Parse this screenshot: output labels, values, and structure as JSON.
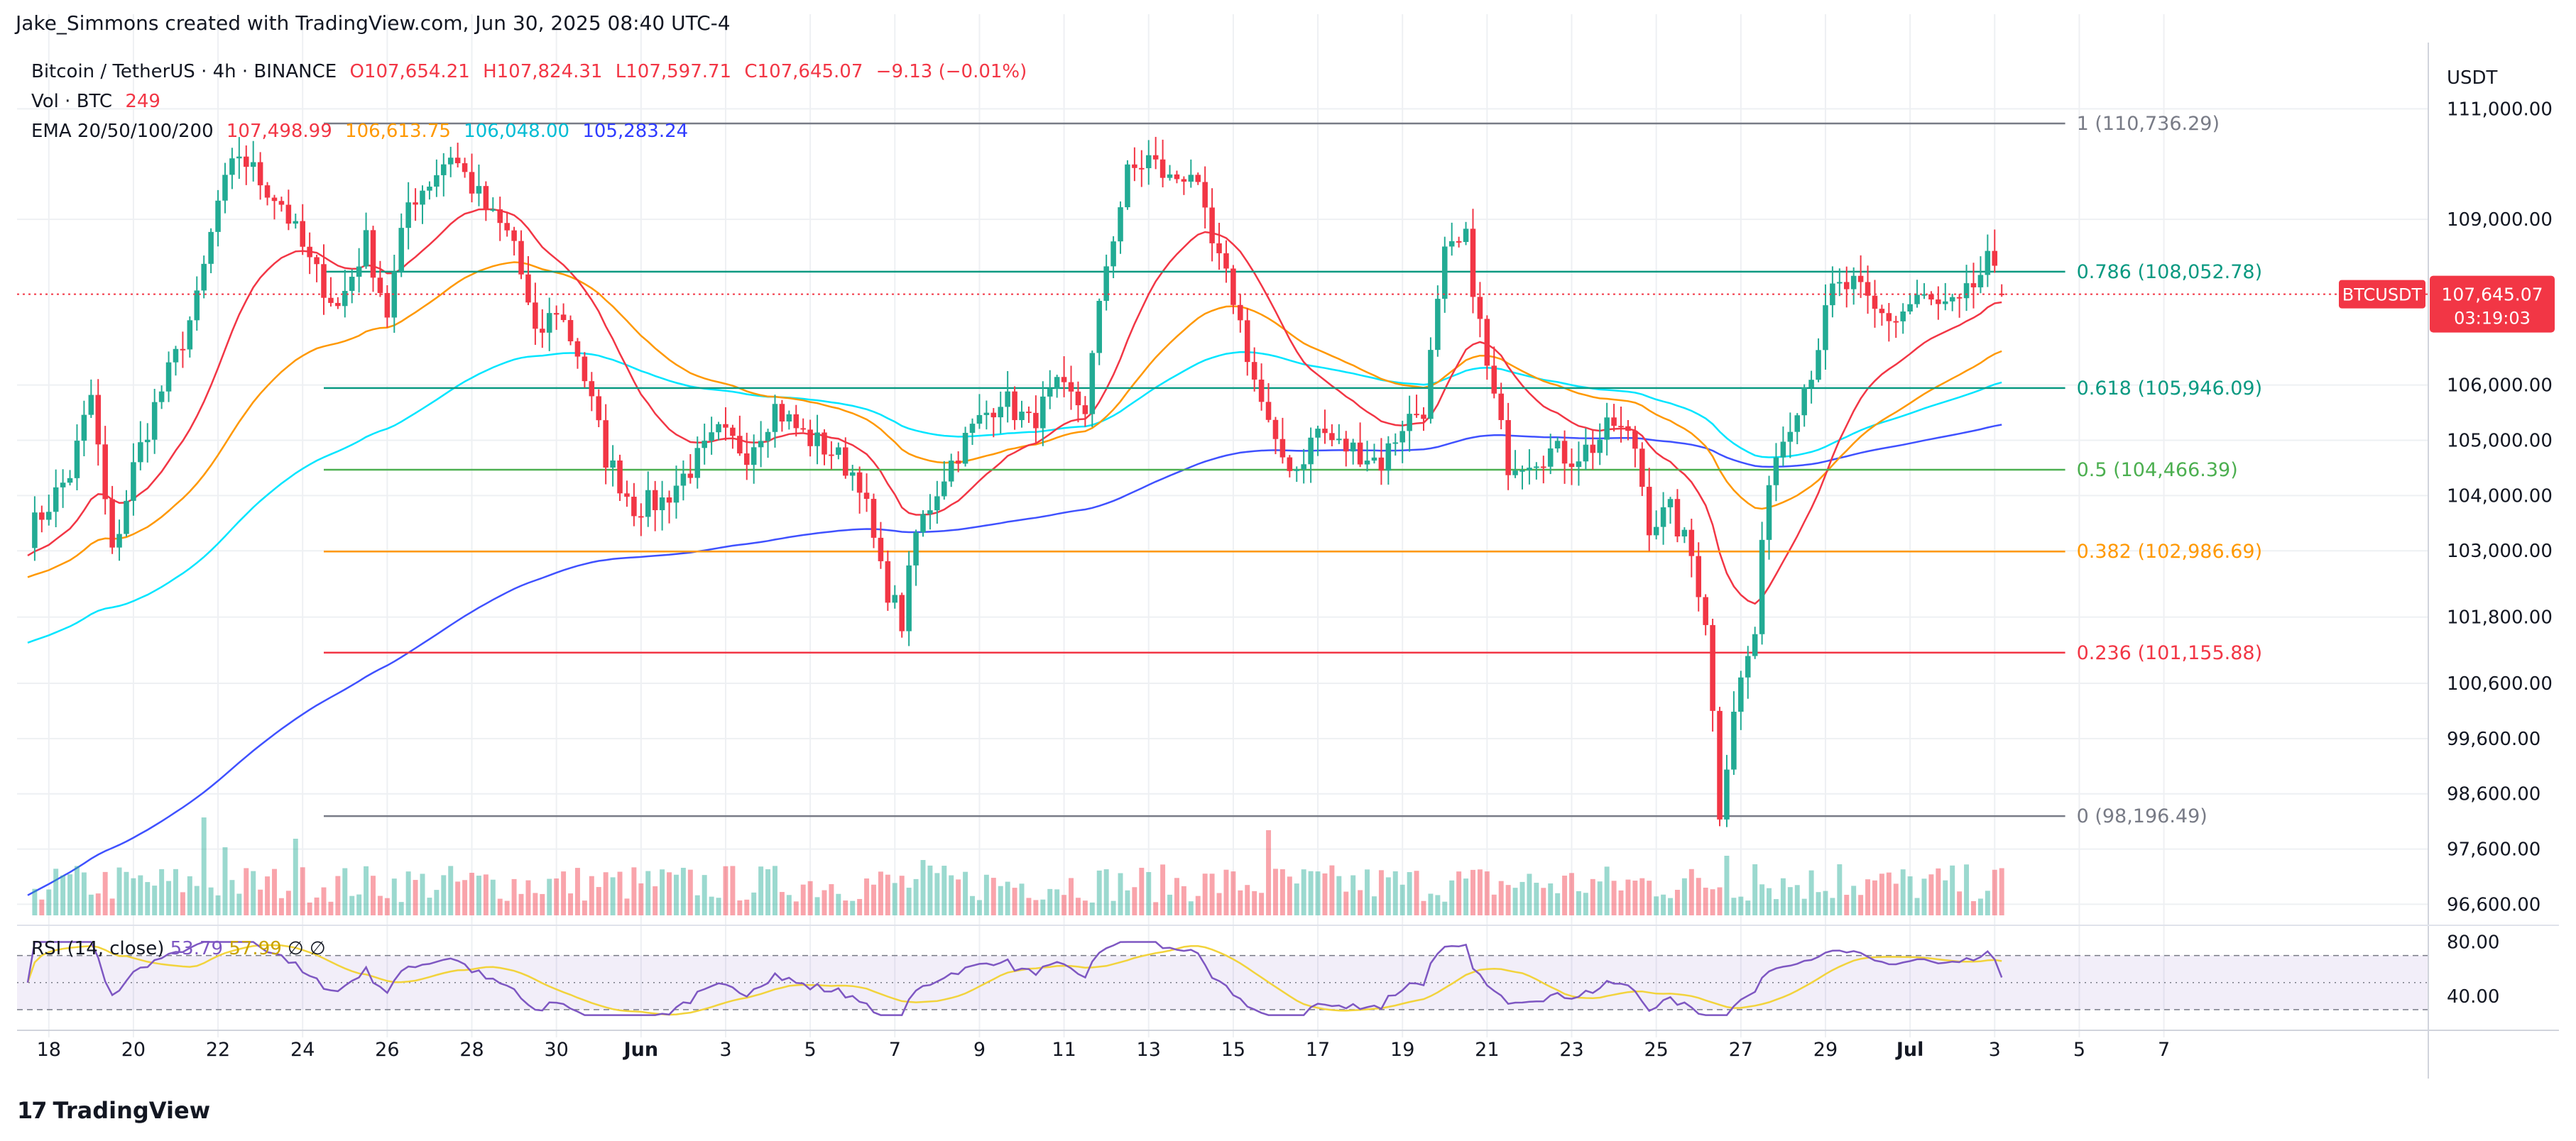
{
  "credit": "Jake_Simmons created with TradingView.com, Jun 30, 2025 08:40 UTC-4",
  "legend": {
    "symbol": "Bitcoin / TetherUS · 4h · BINANCE",
    "open": "O107,654.21",
    "high": "H107,824.31",
    "low": "L107,597.71",
    "close": "C107,645.07",
    "change": "−9.13 (−0.01%)",
    "vol_label": "Vol · BTC",
    "vol_value": "249",
    "ema_label": "EMA 20/50/100/200",
    "ema20": "107,498.99",
    "ema50": "106,613.75",
    "ema100": "106,048.00",
    "ema200": "105,283.24"
  },
  "footer": {
    "logo": "17",
    "brand": "TradingView"
  },
  "colors": {
    "up": "#22ab94",
    "down": "#f23645",
    "ema20": "#f23645",
    "ema50": "#ff9800",
    "ema100": "#00e5ff",
    "ema200": "#3f51ff",
    "rsi": "#7e57c2",
    "rsi_ma": "#f2d33c",
    "grid": "#eef0f3",
    "axis_text": "#131722"
  },
  "chart_data": {
    "type": "candlestick",
    "title": "Bitcoin / TetherUS · 4h · BINANCE",
    "currency_label": "USDT",
    "price_axis_ticks": [
      96600,
      97600,
      98600,
      99600,
      100600,
      101800,
      103000,
      104000,
      105000,
      106000,
      109000,
      111000
    ],
    "price_axis_labels": [
      "96,600.00",
      "97,600.00",
      "98,600.00",
      "99,600.00",
      "100,600.00",
      "101,800.00",
      "103,000.00",
      "104,000.00",
      "105,000.00",
      "106,000.00",
      "109,000.00",
      "111,000.00"
    ],
    "price_range": [
      96400,
      112200
    ],
    "x_labels": [
      "18",
      "20",
      "22",
      "24",
      "26",
      "28",
      "30",
      "Jun",
      "3",
      "5",
      "7",
      "9",
      "11",
      "13",
      "15",
      "17",
      "19",
      "21",
      "23",
      "25",
      "27",
      "29",
      "Jul",
      "3",
      "5",
      "7"
    ],
    "bars_per_day": 6,
    "first_day": "May 18",
    "last_price": {
      "symbol": "BTCUSDT",
      "price": "107,645.07",
      "countdown": "03:19:03",
      "value": 107645.07
    },
    "fib_levels": [
      {
        "label": "1 (110,736.29)",
        "value": 110736.29,
        "color": "#787b86"
      },
      {
        "label": "0.786 (108,052.78)",
        "value": 108052.78,
        "color": "#089981"
      },
      {
        "label": "0.618 (105,946.09)",
        "value": 105946.09,
        "color": "#089981"
      },
      {
        "label": "0.5 (104,466.39)",
        "value": 104466.39,
        "color": "#4caf50"
      },
      {
        "label": "0.382 (102,986.69)",
        "value": 102986.69,
        "color": "#ff9800"
      },
      {
        "label": "0.236 (101,155.88)",
        "value": 101155.88,
        "color": "#f23645"
      },
      {
        "label": "0 (98,196.49)",
        "value": 98196.49,
        "color": "#787b86"
      }
    ],
    "close_path_keypoints": [
      [
        0,
        103300
      ],
      [
        6,
        104400
      ],
      [
        9,
        105800
      ],
      [
        12,
        102900
      ],
      [
        15,
        104500
      ],
      [
        18,
        105600
      ],
      [
        21,
        106500
      ],
      [
        24,
        107500
      ],
      [
        27,
        109300
      ],
      [
        30,
        110200
      ],
      [
        33,
        109700
      ],
      [
        36,
        109300
      ],
      [
        40,
        108200
      ],
      [
        44,
        107400
      ],
      [
        48,
        108600
      ],
      [
        51,
        107300
      ],
      [
        54,
        109300
      ],
      [
        57,
        109700
      ],
      [
        60,
        110200
      ],
      [
        63,
        109600
      ],
      [
        66,
        109000
      ],
      [
        69,
        108600
      ],
      [
        72,
        106800
      ],
      [
        75,
        107400
      ],
      [
        78,
        106600
      ],
      [
        82,
        104700
      ],
      [
        86,
        103800
      ],
      [
        90,
        103900
      ],
      [
        94,
        104500
      ],
      [
        98,
        105100
      ],
      [
        102,
        104800
      ],
      [
        106,
        105600
      ],
      [
        110,
        105100
      ],
      [
        114,
        104800
      ],
      [
        118,
        104300
      ],
      [
        121,
        102600
      ],
      [
        124,
        101700
      ],
      [
        126,
        103300
      ],
      [
        130,
        104400
      ],
      [
        134,
        105200
      ],
      [
        138,
        105800
      ],
      [
        142,
        105300
      ],
      [
        146,
        105900
      ],
      [
        150,
        105600
      ],
      [
        153,
        108200
      ],
      [
        156,
        109800
      ],
      [
        159,
        110100
      ],
      [
        162,
        109700
      ],
      [
        165,
        109900
      ],
      [
        168,
        108500
      ],
      [
        171,
        107600
      ],
      [
        174,
        106100
      ],
      [
        177,
        104800
      ],
      [
        180,
        104500
      ],
      [
        183,
        105200
      ],
      [
        186,
        104900
      ],
      [
        189,
        104800
      ],
      [
        192,
        104600
      ],
      [
        195,
        105300
      ],
      [
        198,
        105600
      ],
      [
        201,
        108300
      ],
      [
        204,
        108600
      ],
      [
        207,
        106300
      ],
      [
        210,
        104600
      ],
      [
        213,
        104700
      ],
      [
        216,
        104800
      ],
      [
        219,
        104700
      ],
      [
        222,
        104900
      ],
      [
        225,
        105300
      ],
      [
        228,
        104900
      ],
      [
        230,
        103500
      ],
      [
        233,
        103700
      ],
      [
        236,
        102900
      ],
      [
        238,
        101800
      ],
      [
        240,
        98300
      ],
      [
        242,
        100200
      ],
      [
        245,
        101500
      ],
      [
        247,
        104400
      ],
      [
        250,
        105400
      ],
      [
        253,
        106300
      ],
      [
        256,
        107700
      ],
      [
        259,
        107800
      ],
      [
        262,
        107300
      ],
      [
        265,
        107200
      ],
      [
        268,
        107600
      ],
      [
        271,
        107400
      ],
      [
        274,
        107400
      ],
      [
        276,
        107800
      ],
      [
        278,
        108200
      ],
      [
        280,
        107645.07
      ]
    ],
    "ema_values_at_end": {
      "ema20": 107498.99,
      "ema50": 106613.75,
      "ema100": 106048.0,
      "ema200": 105283.24
    },
    "ema_start_values": {
      "ema20": 102900,
      "ema50": 102500,
      "ema100": 101300,
      "ema200": 96700
    },
    "volume": {
      "spike_bars": [
        [
          25,
          2.3
        ],
        [
          28,
          1.6
        ],
        [
          38,
          1.8
        ],
        [
          127,
          1.3
        ],
        [
          176,
          2.0
        ],
        [
          241,
          1.4
        ],
        [
          245,
          1.2
        ],
        [
          257,
          1.2
        ]
      ],
      "last_value": 249
    },
    "rsi": {
      "label": "RSI (14, close)",
      "value": "53.79",
      "ma_value": "57.99",
      "extra": [
        "∅",
        "∅"
      ],
      "levels": [
        70,
        50,
        30
      ],
      "axis_labels": [
        "80.00",
        "40.00"
      ],
      "range": [
        20,
        85
      ]
    }
  }
}
